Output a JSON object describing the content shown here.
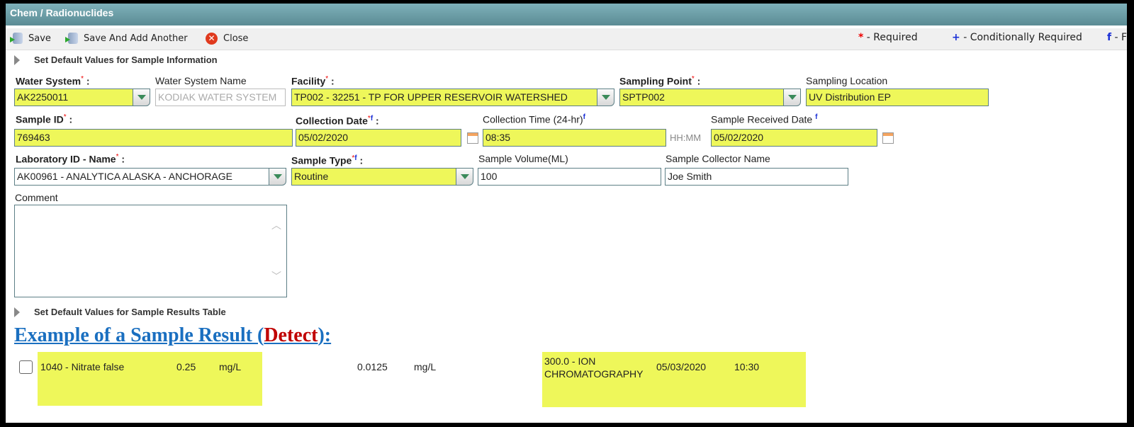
{
  "window": {
    "title": "Chem / Radionuclides"
  },
  "toolbar": {
    "save": "Save",
    "save_add": "Save And Add Another",
    "close": "Close"
  },
  "legend": {
    "required_mark": "*",
    "required": "- Required",
    "cond_mark": "+",
    "cond": "- Conditionally Required",
    "f_mark": "f",
    "f": "- F"
  },
  "sections": {
    "sample_info": "Set Default Values for Sample Information",
    "results": "Set Default Values for Sample Results Table"
  },
  "form": {
    "water_system": {
      "label": "Water System",
      "value": "AK2250011"
    },
    "water_system_name": {
      "label": "Water System Name",
      "value": "KODIAK WATER SYSTEM"
    },
    "facility": {
      "label": "Facility",
      "value": "TP002 - 32251 - TP FOR UPPER RESERVOIR WATERSHED"
    },
    "sampling_point": {
      "label": "Sampling Point",
      "value": "SPTP002"
    },
    "sampling_location": {
      "label": "Sampling Location",
      "value": "UV Distribution EP"
    },
    "sample_id": {
      "label": "Sample ID",
      "value": "769463"
    },
    "collection_date": {
      "label": "Collection Date",
      "value": "05/02/2020"
    },
    "collection_time": {
      "label": "Collection Time (24-hr)",
      "value": "08:35",
      "hint": "HH:MM"
    },
    "received_date": {
      "label": "Sample Received Date",
      "value": "05/02/2020"
    },
    "lab": {
      "label": "Laboratory ID - Name",
      "value": "AK00961 - ANALYTICA ALASKA - ANCHORAGE"
    },
    "sample_type": {
      "label": "Sample Type",
      "value": "Routine"
    },
    "sample_volume": {
      "label": "Sample Volume(ML)",
      "value": "100"
    },
    "collector": {
      "label": "Sample Collector Name",
      "value": "Joe Smith"
    },
    "comment": {
      "label": "Comment",
      "value": ""
    }
  },
  "example": {
    "prefix": "Example of a Sample Result (",
    "detect": "Detect",
    "suffix": "):"
  },
  "result_row": {
    "analyte": "1040 - Nitrate false",
    "result": "0.25",
    "unit": "mg/L",
    "mdl": "0.0125",
    "mdl_unit": "mg/L",
    "method_line1": "300.0 - ION",
    "method_line2": "CHROMATOGRAPHY",
    "date": "05/03/2020",
    "time": "10:30"
  },
  "colors": {
    "highlight": "#eef75a",
    "title_bar": "#6a9ca5",
    "required": "#ee0000",
    "detect": "#c00000",
    "heading": "#1a6fc0"
  }
}
